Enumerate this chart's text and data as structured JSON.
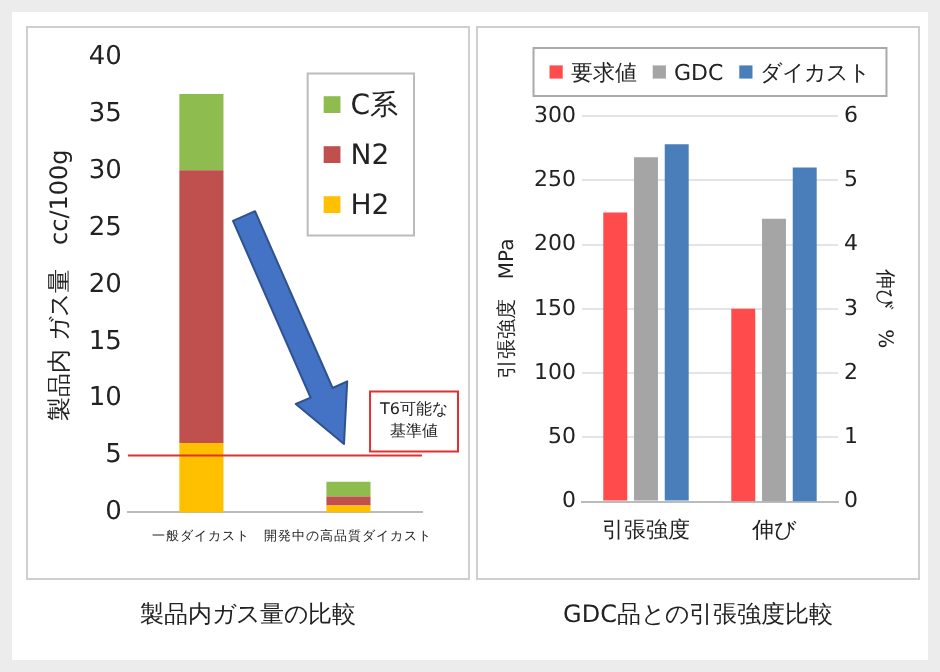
{
  "chart_data": [
    {
      "type": "bar",
      "title": "製品内ガス量の比較",
      "ylabel": "製品内 ガス量　cc/100g",
      "categories": [
        "一般ダイカスト",
        "開発中の高品質ダイカスト"
      ],
      "stacked": true,
      "ylim": [
        0,
        40
      ],
      "yticks": [
        0,
        5,
        10,
        15,
        20,
        25,
        30,
        35,
        40
      ],
      "grid": false,
      "legend": "top right",
      "series": [
        {
          "name": "H2",
          "color": "#ffc000",
          "values": [
            6.1,
            0.6
          ]
        },
        {
          "name": "N2",
          "color": "#c0504d",
          "values": [
            24,
            0.8
          ]
        },
        {
          "name": "C系",
          "color": "#8fbc4f",
          "values": [
            6.7,
            1.3
          ]
        }
      ],
      "ref_lines": [
        {
          "axis": "y",
          "value": 5,
          "label": "T6可能な基準値",
          "color": "#e03030"
        }
      ]
    },
    {
      "type": "bar",
      "title": "GDC品との引張強度比較",
      "ylabel": "引張強度　MPa",
      "y2label": "伸び　%",
      "categories": [
        "引張強度",
        "伸び"
      ],
      "ylim": [
        0,
        300
      ],
      "yticks": [
        0,
        50,
        100,
        150,
        200,
        250,
        300
      ],
      "y2lim": [
        0,
        6
      ],
      "y2ticks": [
        0,
        1,
        2,
        3,
        4,
        5,
        6
      ],
      "grid": "y",
      "legend": "top",
      "series": [
        {
          "name": "要求値",
          "color": "#ff4b4b",
          "values": [
            225,
            null
          ]
        },
        {
          "name": "GDC",
          "color": "#a5a5a5",
          "values": [
            268,
            null
          ]
        },
        {
          "name": "ダイカスト",
          "color": "#4a7ebb",
          "values": [
            278,
            null
          ]
        },
        {
          "color": "#ff4b4b",
          "values": [
            null,
            3
          ],
          "axis": "y2"
        },
        {
          "color": "#a5a5a5",
          "values": [
            null,
            4.4
          ],
          "axis": "y2"
        },
        {
          "color": "#4a7ebb",
          "values": [
            null,
            5.2
          ],
          "axis": "y2"
        }
      ]
    }
  ]
}
